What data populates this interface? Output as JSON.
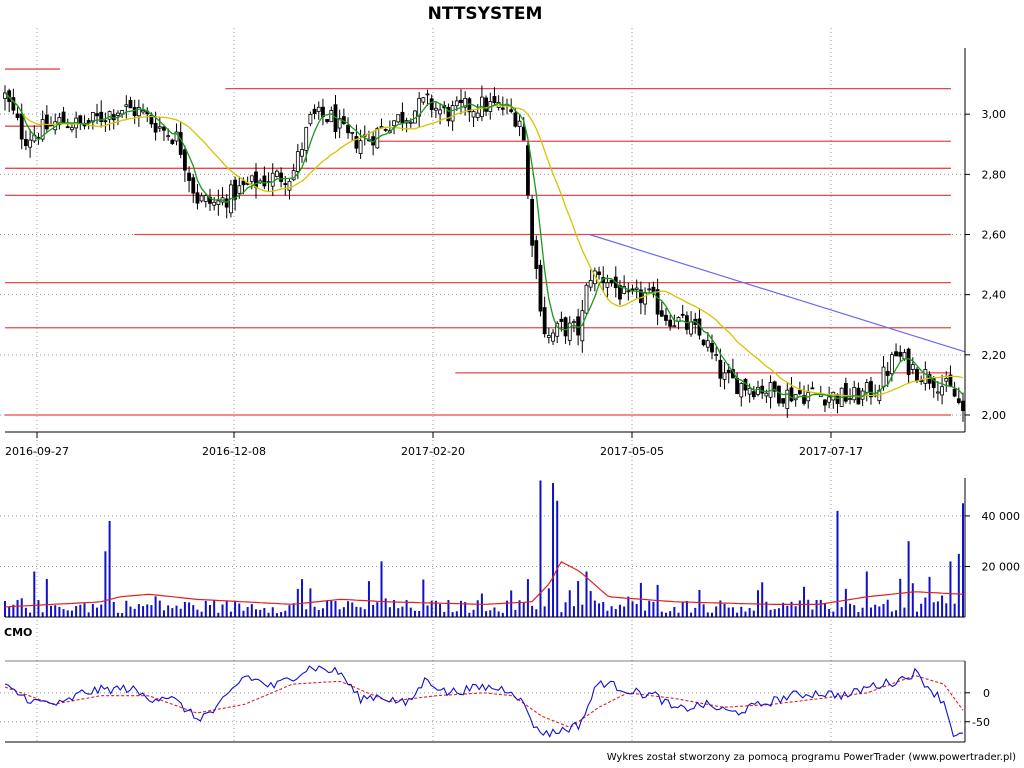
{
  "chart_data": [
    {
      "type": "candlestick",
      "title": "NTTSYSTEM",
      "x_tick_labels": [
        "2016-09-27",
        "2016-12-08",
        "2017-02-20",
        "2017-05-05",
        "2017-07-17"
      ],
      "ylim": [
        1.97,
        3.22
      ],
      "y_tick_values": [
        2.0,
        2.2,
        2.4,
        2.6,
        2.8,
        3.0
      ],
      "y_tick_labels": [
        "2,00",
        "2,20",
        "2,40",
        "2,60",
        "2,80",
        "3,00"
      ],
      "grid": true,
      "ma_short_color": "#1a9a1a",
      "ma_long_color": "#d6c400",
      "support_resistance_color": "#e8474f",
      "trendline_color": "#6a6af0",
      "horizontal_levels": [
        {
          "y": 3.15,
          "from": 0.0,
          "to": 0.07
        },
        {
          "y": 3.085,
          "from": 0.23,
          "to": 1.0
        },
        {
          "y": 2.96,
          "from": 0.0,
          "to": 0.06
        },
        {
          "y": 2.91,
          "from": 0.38,
          "to": 1.0
        },
        {
          "y": 2.82,
          "from": 0.0,
          "to": 1.0
        },
        {
          "y": 2.73,
          "from": 0.0,
          "to": 1.0
        },
        {
          "y": 2.6,
          "from": 0.135,
          "to": 1.0
        },
        {
          "y": 2.44,
          "from": 0.0,
          "to": 1.0
        },
        {
          "y": 2.29,
          "from": 0.0,
          "to": 1.0
        },
        {
          "y": 2.14,
          "from": 0.47,
          "to": 1.0
        },
        {
          "y": 2.0,
          "from": 0.0,
          "to": 1.0
        }
      ],
      "trendline": {
        "from": [
          0.61,
          2.6
        ],
        "to": [
          1.0,
          2.21
        ]
      },
      "price_path": [
        [
          0.0,
          3.06
        ],
        [
          0.02,
          2.92
        ],
        [
          0.04,
          2.95
        ],
        [
          0.06,
          2.98
        ],
        [
          0.08,
          2.96
        ],
        [
          0.1,
          2.99
        ],
        [
          0.12,
          3.02
        ],
        [
          0.14,
          3.01
        ],
        [
          0.16,
          2.96
        ],
        [
          0.18,
          2.92
        ],
        [
          0.2,
          2.72
        ],
        [
          0.22,
          2.7
        ],
        [
          0.24,
          2.74
        ],
        [
          0.26,
          2.77
        ],
        [
          0.28,
          2.79
        ],
        [
          0.3,
          2.8
        ],
        [
          0.32,
          2.99
        ],
        [
          0.34,
          2.99
        ],
        [
          0.36,
          2.91
        ],
        [
          0.38,
          2.92
        ],
        [
          0.4,
          2.97
        ],
        [
          0.42,
          3.0
        ],
        [
          0.44,
          3.04
        ],
        [
          0.46,
          3.0
        ],
        [
          0.48,
          3.02
        ],
        [
          0.5,
          3.03
        ],
        [
          0.52,
          3.02
        ],
        [
          0.54,
          2.98
        ],
        [
          0.545,
          2.75
        ],
        [
          0.55,
          2.6
        ],
        [
          0.555,
          2.47
        ],
        [
          0.56,
          2.35
        ],
        [
          0.565,
          2.25
        ],
        [
          0.58,
          2.29
        ],
        [
          0.6,
          2.28
        ],
        [
          0.61,
          2.47
        ],
        [
          0.63,
          2.45
        ],
        [
          0.65,
          2.38
        ],
        [
          0.67,
          2.4
        ],
        [
          0.69,
          2.33
        ],
        [
          0.71,
          2.3
        ],
        [
          0.73,
          2.25
        ],
        [
          0.75,
          2.12
        ],
        [
          0.77,
          2.1
        ],
        [
          0.79,
          2.09
        ],
        [
          0.81,
          2.07
        ],
        [
          0.83,
          2.07
        ],
        [
          0.85,
          2.07
        ],
        [
          0.87,
          2.06
        ],
        [
          0.89,
          2.06
        ],
        [
          0.91,
          2.09
        ],
        [
          0.93,
          2.2
        ],
        [
          0.95,
          2.15
        ],
        [
          0.97,
          2.12
        ],
        [
          0.99,
          2.07
        ],
        [
          1.0,
          2.01
        ]
      ]
    },
    {
      "type": "bar",
      "ylim": [
        0,
        55000
      ],
      "y_tick_values": [
        20000,
        40000
      ],
      "y_tick_labels": [
        "20 000",
        "40 000"
      ],
      "bar_color": "#1010c8",
      "ma_color": "#e02020",
      "volume_avg_path": [
        [
          0.0,
          4000
        ],
        [
          0.1,
          6000
        ],
        [
          0.12,
          8000
        ],
        [
          0.15,
          9000
        ],
        [
          0.2,
          7000
        ],
        [
          0.3,
          5000
        ],
        [
          0.35,
          7000
        ],
        [
          0.4,
          6000
        ],
        [
          0.5,
          5000
        ],
        [
          0.55,
          6000
        ],
        [
          0.57,
          14000
        ],
        [
          0.58,
          22000
        ],
        [
          0.6,
          18000
        ],
        [
          0.63,
          8000
        ],
        [
          0.7,
          6000
        ],
        [
          0.8,
          5000
        ],
        [
          0.85,
          5000
        ],
        [
          0.9,
          8000
        ],
        [
          0.95,
          10000
        ],
        [
          1.0,
          9000
        ]
      ],
      "spikes": [
        {
          "x": 0.11,
          "v": 38000
        },
        {
          "x": 0.105,
          "v": 26000
        },
        {
          "x": 0.03,
          "v": 18000
        },
        {
          "x": 0.31,
          "v": 15000
        },
        {
          "x": 0.395,
          "v": 22000
        },
        {
          "x": 0.545,
          "v": 15000
        },
        {
          "x": 0.56,
          "v": 54000
        },
        {
          "x": 0.57,
          "v": 53000
        },
        {
          "x": 0.575,
          "v": 46000
        },
        {
          "x": 0.605,
          "v": 18000
        },
        {
          "x": 0.87,
          "v": 42000
        },
        {
          "x": 0.9,
          "v": 18000
        },
        {
          "x": 0.945,
          "v": 30000
        },
        {
          "x": 0.985,
          "v": 22000
        },
        {
          "x": 0.995,
          "v": 25000
        },
        {
          "x": 1.0,
          "v": 45000
        }
      ]
    },
    {
      "type": "line",
      "title": "CMO",
      "ylim": [
        -85,
        55
      ],
      "y_tick_values": [
        0,
        -50
      ],
      "y_tick_labels": [
        "0",
        "-50"
      ],
      "cmo_color": "#1010d0",
      "signal_color": "#e02020",
      "cmo_path": [
        [
          0.0,
          10
        ],
        [
          0.03,
          -15
        ],
        [
          0.06,
          -20
        ],
        [
          0.08,
          0
        ],
        [
          0.1,
          5
        ],
        [
          0.13,
          8
        ],
        [
          0.15,
          -10
        ],
        [
          0.17,
          -5
        ],
        [
          0.19,
          -30
        ],
        [
          0.2,
          -45
        ],
        [
          0.22,
          -30
        ],
        [
          0.25,
          30
        ],
        [
          0.28,
          10
        ],
        [
          0.32,
          45
        ],
        [
          0.35,
          35
        ],
        [
          0.37,
          -10
        ],
        [
          0.39,
          -5
        ],
        [
          0.42,
          -20
        ],
        [
          0.44,
          25
        ],
        [
          0.46,
          0
        ],
        [
          0.5,
          10
        ],
        [
          0.53,
          5
        ],
        [
          0.545,
          -30
        ],
        [
          0.555,
          -65
        ],
        [
          0.57,
          -70
        ],
        [
          0.6,
          -55
        ],
        [
          0.62,
          20
        ],
        [
          0.66,
          0
        ],
        [
          0.68,
          -5
        ],
        [
          0.7,
          -30
        ],
        [
          0.73,
          -20
        ],
        [
          0.76,
          -35
        ],
        [
          0.79,
          -20
        ],
        [
          0.82,
          -5
        ],
        [
          0.85,
          0
        ],
        [
          0.88,
          -5
        ],
        [
          0.9,
          10
        ],
        [
          0.93,
          20
        ],
        [
          0.95,
          35
        ],
        [
          0.97,
          0
        ],
        [
          0.98,
          -15
        ],
        [
          0.99,
          -70
        ],
        [
          1.0,
          -75
        ]
      ],
      "signal_path": [
        [
          0.0,
          10
        ],
        [
          0.05,
          -20
        ],
        [
          0.1,
          -5
        ],
        [
          0.15,
          -5
        ],
        [
          0.2,
          -35
        ],
        [
          0.25,
          -20
        ],
        [
          0.3,
          15
        ],
        [
          0.35,
          20
        ],
        [
          0.4,
          -15
        ],
        [
          0.45,
          -5
        ],
        [
          0.5,
          0
        ],
        [
          0.53,
          -5
        ],
        [
          0.56,
          -40
        ],
        [
          0.59,
          -60
        ],
        [
          0.62,
          -25
        ],
        [
          0.65,
          0
        ],
        [
          0.7,
          -10
        ],
        [
          0.75,
          -25
        ],
        [
          0.8,
          -20
        ],
        [
          0.85,
          -10
        ],
        [
          0.9,
          0
        ],
        [
          0.95,
          30
        ],
        [
          0.98,
          15
        ],
        [
          1.0,
          -30
        ]
      ]
    }
  ],
  "footer": "Wykres został stworzony za pomocą programu PowerTrader (www.powertrader.pl)"
}
